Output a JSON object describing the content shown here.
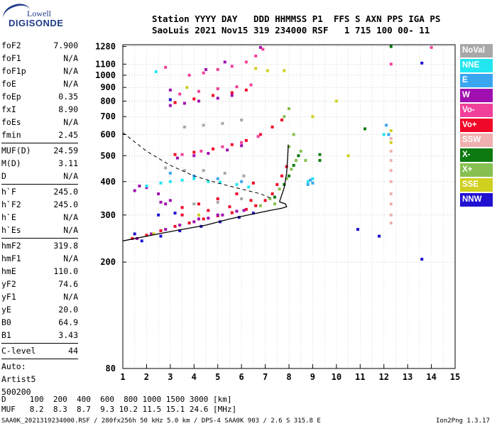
{
  "logo": {
    "line1": "Lowell",
    "line2": "DIGISONDE"
  },
  "header": {
    "row1": "Station YYYY DAY   DDD HHMMSS P1  FFS S AXN PPS IGA PS",
    "row2": "SaoLuis 2021 Nov15 319 234000 RSF   1 715 100 00- 11"
  },
  "params": [
    {
      "name": "foF2",
      "value": "7.900"
    },
    {
      "name": "foF1",
      "value": "N/A"
    },
    {
      "name": "foF1p",
      "value": "N/A"
    },
    {
      "name": "foE",
      "value": "N/A"
    },
    {
      "name": "foEp",
      "value": "0.35"
    },
    {
      "name": "fxI",
      "value": "8.90"
    },
    {
      "name": "foEs",
      "value": "N/A"
    },
    {
      "name": "fmin",
      "value": "2.45"
    },
    {
      "name": "MUF(D)",
      "value": "24.59"
    },
    {
      "name": "M(D)",
      "value": "3.11"
    },
    {
      "name": "D",
      "value": "N/A"
    },
    {
      "name": "h`F",
      "value": "245.0"
    },
    {
      "name": "h`F2",
      "value": "245.0"
    },
    {
      "name": "h`E",
      "value": "N/A"
    },
    {
      "name": "h`Es",
      "value": "N/A"
    },
    {
      "name": "hmF2",
      "value": "319.8"
    },
    {
      "name": "hmF1",
      "value": "N/A"
    },
    {
      "name": "hmE",
      "value": "110.0"
    },
    {
      "name": "yF2",
      "value": "74.6"
    },
    {
      "name": "yF1",
      "value": "N/A"
    },
    {
      "name": "yE",
      "value": "20.0"
    },
    {
      "name": "B0",
      "value": "64.9"
    },
    {
      "name": "B1",
      "value": "3.43"
    },
    {
      "name": "C-level",
      "value": "44"
    }
  ],
  "auto": {
    "line1": "Auto:",
    "line2": "Artist5",
    "line3": "500200"
  },
  "legend": [
    {
      "label": "NoVal",
      "color": "#a8a8a8"
    },
    {
      "label": "NNE",
      "color": "#22e6f0"
    },
    {
      "label": "E",
      "color": "#3aa6f0"
    },
    {
      "label": "W",
      "color": "#a010b0"
    },
    {
      "label": "Vo-",
      "color": "#f0409a"
    },
    {
      "label": "Vo+",
      "color": "#f00828"
    },
    {
      "label": "SSW",
      "color": "#f0b0b0"
    },
    {
      "label": "X-",
      "color": "#0c7a10"
    },
    {
      "label": "X+",
      "color": "#86c050"
    },
    {
      "label": "SSE",
      "color": "#d0d020"
    },
    {
      "label": "NNW",
      "color": "#2010d0"
    }
  ],
  "muf_table": {
    "d_row": "D     100  200  400  600  800 1000 1500 3000 [km]",
    "muf_row": "MUF   8.2  8.3  8.7  9.3 10.2 11.5 15.1 24.6 [MHz]"
  },
  "footer": {
    "left": "SAA0K_2021319234000.RSF / 280fx256h 50 kHz 5.0 km / DPS-4 SAA0K 903 / 2.6 S 315.8 E",
    "right": "Ion2Png 1.3.17"
  },
  "chart_data": {
    "type": "scatter",
    "xlim": [
      1,
      15
    ],
    "ylim": [
      80,
      1300
    ],
    "y_scale": "log",
    "x_ticks": [
      "1",
      "2",
      "3",
      "4",
      "5",
      "6",
      "7",
      "8",
      "9",
      "10",
      "11",
      "12",
      "13",
      "14",
      "15"
    ],
    "y_ticks": [
      "80",
      "200",
      "300",
      "400",
      "500",
      "600",
      "700",
      "800",
      "900",
      "1000",
      "1100",
      "1280"
    ],
    "grid": true,
    "profile": [
      [
        1.0,
        240
      ],
      [
        2.5,
        255
      ],
      [
        3.5,
        265
      ],
      [
        4.5,
        275
      ],
      [
        5.5,
        290
      ],
      [
        6.5,
        303
      ],
      [
        7.2,
        312
      ],
      [
        7.7,
        318
      ],
      [
        7.9,
        322
      ],
      [
        7.85,
        330
      ],
      [
        7.6,
        336
      ]
    ],
    "profile_upper": [
      [
        7.6,
        336
      ],
      [
        7.8,
        380
      ],
      [
        7.9,
        430
      ],
      [
        7.95,
        500
      ],
      [
        7.97,
        550
      ]
    ],
    "model_curve": [
      [
        1.0,
        610
      ],
      [
        2.0,
        520
      ],
      [
        3.0,
        460
      ],
      [
        4.0,
        420
      ],
      [
        5.0,
        395
      ],
      [
        6.0,
        375
      ],
      [
        6.8,
        360
      ],
      [
        7.3,
        345
      ]
    ],
    "series": [
      {
        "name": "Vo+",
        "color": "#f00828",
        "points": [
          [
            1.4,
            245
          ],
          [
            2.0,
            252
          ],
          [
            2.6,
            262
          ],
          [
            3.2,
            272
          ],
          [
            3.8,
            280
          ],
          [
            4.4,
            290
          ],
          [
            5.0,
            298
          ],
          [
            5.6,
            306
          ],
          [
            6.2,
            315
          ],
          [
            6.6,
            325
          ],
          [
            7.0,
            340
          ],
          [
            7.3,
            360
          ],
          [
            7.5,
            390
          ],
          [
            7.7,
            420
          ],
          [
            7.9,
            455
          ],
          [
            3.5,
            320
          ],
          [
            4.2,
            330
          ],
          [
            5.0,
            345
          ],
          [
            5.8,
            360
          ],
          [
            6.5,
            395
          ],
          [
            3.2,
            505
          ],
          [
            4.0,
            515
          ],
          [
            4.8,
            530
          ],
          [
            5.6,
            550
          ],
          [
            6.2,
            570
          ],
          [
            6.8,
            600
          ],
          [
            7.3,
            640
          ],
          [
            7.7,
            680
          ],
          [
            3.2,
            790
          ],
          [
            4.0,
            815
          ],
          [
            4.8,
            840
          ],
          [
            5.6,
            860
          ],
          [
            6.2,
            880
          ],
          [
            3.5,
            300
          ],
          [
            4.6,
            312
          ],
          [
            5.5,
            322
          ],
          [
            6.4,
            340
          ]
        ]
      },
      {
        "name": "W",
        "color": "#a010b0",
        "points": [
          [
            1.6,
            245
          ],
          [
            2.2,
            255
          ],
          [
            2.8,
            265
          ],
          [
            3.4,
            275
          ],
          [
            4.0,
            283
          ],
          [
            4.6,
            292
          ],
          [
            5.2,
            300
          ],
          [
            5.8,
            310
          ],
          [
            2.5,
            360
          ],
          [
            2.6,
            335
          ],
          [
            2.8,
            330
          ],
          [
            3.0,
            340
          ],
          [
            3.3,
            490
          ],
          [
            4.0,
            500
          ],
          [
            4.6,
            510
          ],
          [
            5.4,
            525
          ],
          [
            6.0,
            545
          ],
          [
            3.0,
            770
          ],
          [
            3.6,
            785
          ],
          [
            4.2,
            800
          ],
          [
            5.0,
            820
          ],
          [
            5.6,
            840
          ],
          [
            3.0,
            880
          ],
          [
            6.8,
            1270
          ],
          [
            4.5,
            1050
          ],
          [
            5.3,
            1120
          ],
          [
            1.5,
            370
          ],
          [
            1.7,
            385
          ],
          [
            2.0,
            380
          ],
          [
            4.2,
            290
          ],
          [
            5.0,
            300
          ],
          [
            6.1,
            312
          ]
        ]
      },
      {
        "name": "Vo-",
        "color": "#f0409a",
        "points": [
          [
            3.4,
            850
          ],
          [
            4.2,
            870
          ],
          [
            5.0,
            890
          ],
          [
            5.8,
            905
          ],
          [
            6.4,
            920
          ],
          [
            3.8,
            1000
          ],
          [
            4.4,
            1020
          ],
          [
            5.0,
            1050
          ],
          [
            5.6,
            1080
          ],
          [
            6.2,
            1120
          ],
          [
            6.6,
            1180
          ],
          [
            6.9,
            1250
          ],
          [
            2.8,
            1070
          ],
          [
            3.5,
            505
          ],
          [
            4.3,
            520
          ],
          [
            5.2,
            540
          ],
          [
            6.0,
            560
          ],
          [
            6.7,
            590
          ],
          [
            12.3,
            1100
          ],
          [
            14.0,
            1270
          ]
        ]
      },
      {
        "name": "X+",
        "color": "#86c050",
        "points": [
          [
            6.8,
            325
          ],
          [
            7.2,
            345
          ],
          [
            7.6,
            375
          ],
          [
            7.9,
            410
          ],
          [
            8.1,
            445
          ],
          [
            8.3,
            480
          ],
          [
            8.5,
            520
          ],
          [
            8.0,
            540
          ],
          [
            8.2,
            600
          ],
          [
            8.7,
            480
          ],
          [
            7.8,
            700
          ],
          [
            8.0,
            750
          ],
          [
            7.4,
            330
          ]
        ]
      },
      {
        "name": "X-",
        "color": "#0c7a10",
        "points": [
          [
            7.4,
            350
          ],
          [
            7.8,
            390
          ],
          [
            8.0,
            420
          ],
          [
            8.2,
            460
          ],
          [
            8.4,
            500
          ],
          [
            9.3,
            505
          ],
          [
            9.3,
            480
          ],
          [
            11.2,
            630
          ],
          [
            12.3,
            1280
          ]
        ]
      },
      {
        "name": "NNE",
        "color": "#22e6f0",
        "points": [
          [
            2.4,
            1030
          ],
          [
            3.0,
            400
          ],
          [
            3.5,
            405
          ],
          [
            4.0,
            410
          ],
          [
            4.6,
            400
          ],
          [
            5.1,
            398
          ],
          [
            5.8,
            390
          ],
          [
            6.3,
            382
          ],
          [
            2.0,
            385
          ],
          [
            2.6,
            395
          ],
          [
            12.0,
            600
          ],
          [
            8.8,
            400
          ],
          [
            9.0,
            410
          ]
        ]
      },
      {
        "name": "E",
        "color": "#3aa6f0",
        "points": [
          [
            3.0,
            430
          ],
          [
            4.0,
            420
          ],
          [
            5.0,
            410
          ],
          [
            6.0,
            400
          ],
          [
            8.8,
            390
          ],
          [
            9.0,
            395
          ],
          [
            8.9,
            405
          ],
          [
            12.1,
            650
          ],
          [
            12.2,
            600
          ]
        ]
      },
      {
        "name": "NoVal",
        "color": "#a8a8a8",
        "points": [
          [
            2.8,
            450
          ],
          [
            3.6,
            440
          ],
          [
            4.4,
            440
          ],
          [
            5.3,
            430
          ],
          [
            6.1,
            420
          ],
          [
            3.6,
            640
          ],
          [
            4.4,
            650
          ],
          [
            5.2,
            660
          ],
          [
            6.0,
            680
          ],
          [
            4.0,
            330
          ],
          [
            5.0,
            335
          ],
          [
            6.0,
            345
          ]
        ]
      },
      {
        "name": "SSE",
        "color": "#d0d020",
        "points": [
          [
            4.2,
            300
          ],
          [
            6.6,
            1060
          ],
          [
            7.1,
            1040
          ],
          [
            7.8,
            1040
          ],
          [
            10.0,
            800
          ],
          [
            10.5,
            500
          ],
          [
            12.3,
            620
          ],
          [
            12.3,
            560
          ],
          [
            9.0,
            700
          ],
          [
            2.3,
            255
          ],
          [
            3.7,
            900
          ]
        ]
      },
      {
        "name": "SSW",
        "color": "#f0b0b0",
        "points": [
          [
            12.3,
            580
          ],
          [
            12.3,
            520
          ],
          [
            12.3,
            480
          ],
          [
            12.3,
            440
          ],
          [
            12.3,
            400
          ],
          [
            12.3,
            360
          ],
          [
            12.3,
            330
          ],
          [
            12.3,
            300
          ],
          [
            12.3,
            280
          ]
        ]
      },
      {
        "name": "NNW",
        "color": "#2010d0",
        "points": [
          [
            1.8,
            240
          ],
          [
            2.6,
            250
          ],
          [
            3.4,
            262
          ],
          [
            4.3,
            272
          ],
          [
            5.1,
            283
          ],
          [
            5.9,
            294
          ],
          [
            6.5,
            305
          ],
          [
            2.5,
            300
          ],
          [
            3.2,
            305
          ],
          [
            3.0,
            810
          ],
          [
            1.5,
            255
          ],
          [
            13.6,
            1110
          ],
          [
            13.6,
            205
          ],
          [
            11.8,
            250
          ],
          [
            10.9,
            265
          ]
        ]
      }
    ]
  }
}
